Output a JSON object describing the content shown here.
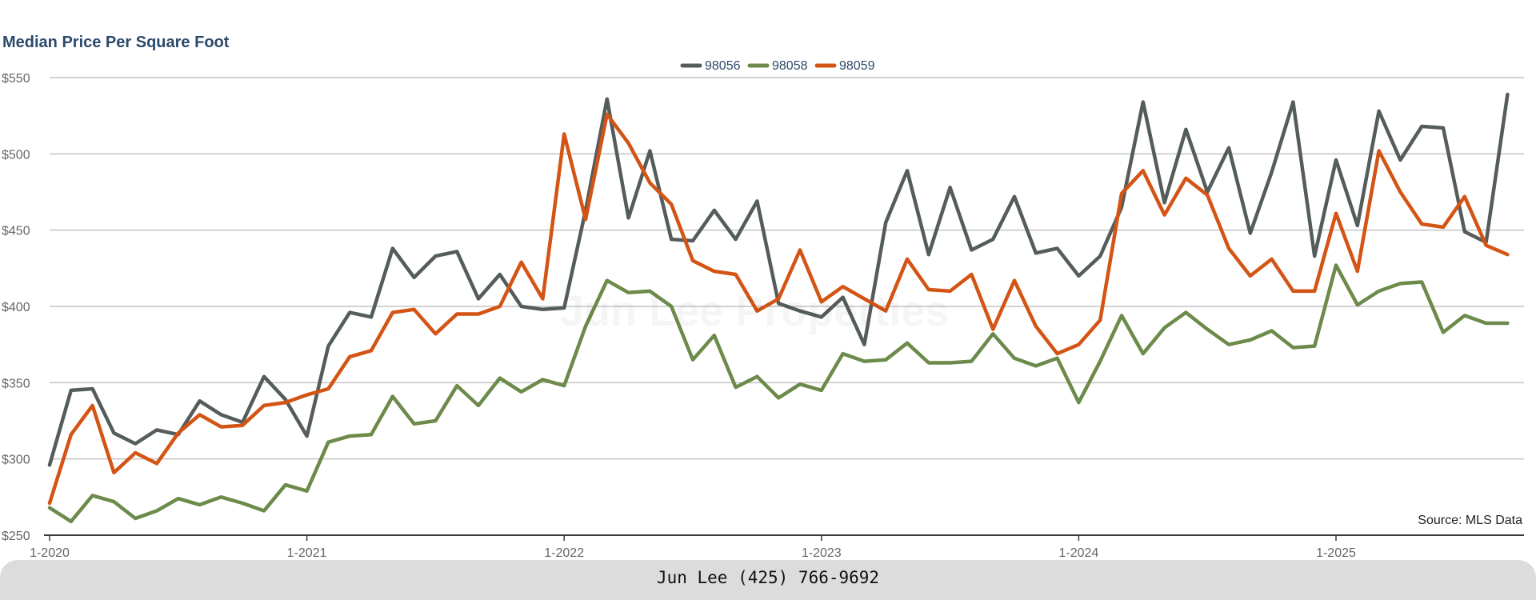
{
  "title": "Median Price Per Square Foot",
  "source_note": "Source: MLS Data",
  "watermark": "Jun Lee Properties",
  "footer": {
    "contact": "Jun Lee (425) 766-9692"
  },
  "colors": {
    "98056": "#555c5c",
    "98058": "#6c8a4a",
    "98059": "#d35414",
    "grid": "#c4c4c4",
    "axis_text": "#666666",
    "legend_text": "#2c4a6b"
  },
  "chart_data": {
    "type": "line",
    "title": "Median Price Per Square Foot",
    "xlabel": "",
    "ylabel": "",
    "ylim": [
      250,
      550
    ],
    "y_ticks": [
      250,
      300,
      350,
      400,
      450,
      500,
      550
    ],
    "y_tick_labels": [
      "$250",
      "$300",
      "$350",
      "$400",
      "$450",
      "$500",
      "$550"
    ],
    "x_tick_labels": [
      "1-2020",
      "1-2021",
      "1-2022",
      "1-2023",
      "1-2024",
      "1-2025"
    ],
    "x_tick_indices": [
      0,
      12,
      24,
      36,
      48,
      60
    ],
    "x_start": "1-2020",
    "grid": true,
    "legend_position": "top-center",
    "series": [
      {
        "name": "98056",
        "color": "#555c5c",
        "values": [
          296,
          345,
          346,
          317,
          310,
          319,
          316,
          338,
          329,
          324,
          354,
          339,
          315,
          374,
          396,
          393,
          438,
          419,
          433,
          436,
          405,
          421,
          400,
          398,
          399,
          463,
          536,
          458,
          502,
          444,
          443,
          463,
          444,
          469,
          402,
          397,
          393,
          406,
          375,
          455,
          489,
          434,
          478,
          437,
          444,
          472,
          435,
          438,
          420,
          433,
          465,
          534,
          468,
          516,
          475,
          504,
          448,
          488,
          534,
          433,
          496,
          453,
          528,
          496,
          518,
          517,
          449,
          442,
          539
        ]
      },
      {
        "name": "98058",
        "color": "#6c8a4a",
        "values": [
          268,
          259,
          276,
          272,
          261,
          266,
          274,
          270,
          275,
          271,
          266,
          283,
          279,
          311,
          315,
          316,
          341,
          323,
          325,
          348,
          335,
          353,
          344,
          352,
          348,
          387,
          417,
          409,
          410,
          400,
          365,
          381,
          347,
          354,
          340,
          349,
          345,
          369,
          364,
          365,
          376,
          363,
          363,
          364,
          382,
          366,
          361,
          366,
          337,
          364,
          394,
          369,
          386,
          396,
          385,
          375,
          378,
          384,
          373,
          374,
          427,
          401,
          410,
          415,
          416,
          383,
          394,
          389,
          389
        ]
      },
      {
        "name": "98059",
        "color": "#d35414",
        "values": [
          271,
          316,
          335,
          291,
          304,
          297,
          317,
          329,
          321,
          322,
          335,
          337,
          342,
          346,
          367,
          371,
          396,
          398,
          382,
          395,
          395,
          400,
          429,
          405,
          513,
          457,
          526,
          507,
          481,
          467,
          430,
          423,
          421,
          397,
          405,
          437,
          403,
          413,
          405,
          397,
          431,
          411,
          410,
          421,
          385,
          417,
          387,
          369,
          375,
          391,
          474,
          489,
          460,
          484,
          473,
          438,
          420,
          431,
          410,
          410,
          461,
          423,
          502,
          475,
          454,
          452,
          472,
          440,
          434
        ]
      }
    ]
  }
}
